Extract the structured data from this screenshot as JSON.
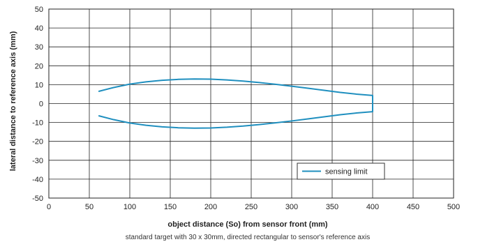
{
  "chart_data": {
    "type": "line",
    "xlabel": "object distance (So) from sensor front (mm)",
    "ylabel": "lateral distance to reference axis (mm)",
    "caption": "standard target with 30 x 30mm, directed rectangular to sensor's reference axis",
    "xlim": [
      0,
      500
    ],
    "ylim": [
      -50,
      50
    ],
    "x_ticks": [
      0,
      50,
      100,
      150,
      200,
      250,
      300,
      350,
      400,
      450,
      500
    ],
    "y_ticks": [
      50,
      40,
      30,
      20,
      10,
      0,
      -10,
      -20,
      -30,
      -40,
      -50
    ],
    "grid": true,
    "legend_position": "bottom-right",
    "series": [
      {
        "name": "sensing limit",
        "color": "#1f8fbf",
        "x": [
          62,
          80,
          100,
          120,
          140,
          160,
          180,
          200,
          220,
          240,
          260,
          280,
          300,
          320,
          340,
          360,
          380,
          400,
          400,
          400,
          380,
          360,
          340,
          320,
          300,
          280,
          260,
          240,
          220,
          200,
          180,
          160,
          140,
          120,
          100,
          80,
          62
        ],
        "y": [
          6.5,
          8.5,
          10.3,
          11.5,
          12.3,
          12.8,
          13.0,
          12.9,
          12.5,
          11.9,
          11.1,
          10.2,
          9.2,
          8.1,
          7.0,
          5.9,
          5.0,
          4.3,
          0,
          -4.3,
          -5.0,
          -5.9,
          -7.0,
          -8.1,
          -9.2,
          -10.2,
          -11.1,
          -11.9,
          -12.5,
          -12.9,
          -13.0,
          -12.8,
          -12.3,
          -11.5,
          -10.3,
          -8.5,
          -6.5
        ]
      }
    ]
  }
}
